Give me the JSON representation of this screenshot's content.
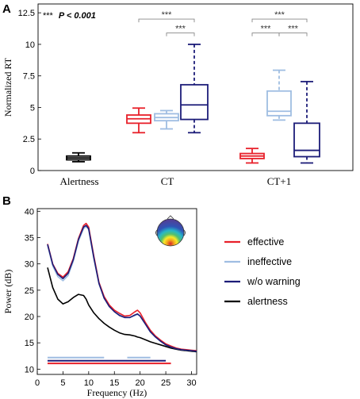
{
  "chart_data": [
    {
      "panel_label": "A",
      "type": "box",
      "ylabel": "Normalized RT",
      "ylim": [
        0,
        13.2
      ],
      "yticks": [
        "0",
        "2.5",
        "5",
        "7.5",
        "10",
        "12.5"
      ],
      "ytick_values": [
        0,
        2.5,
        5,
        7.5,
        10,
        12.5
      ],
      "group_labels": [
        "Alertness",
        "CT",
        "CT+1"
      ],
      "significance_legend": {
        "stars": "***",
        "text": "P < 0.001"
      },
      "boxes": [
        {
          "group": "Alertness",
          "color": "#000000",
          "whisker_low": 0.7,
          "q1": 0.85,
          "median": 1.0,
          "q3": 1.15,
          "whisker_high": 1.4
        },
        {
          "group": "CT",
          "color": "#e8202a",
          "whisker_low": 3.0,
          "q1": 3.75,
          "median": 4.1,
          "q3": 4.4,
          "whisker_high": 4.95
        },
        {
          "group": "CT",
          "color": "#9fbde2",
          "whisker_low": 3.3,
          "q1": 3.95,
          "median": 4.2,
          "q3": 4.5,
          "whisker_high": 4.75
        },
        {
          "group": "CT",
          "color": "#1c1c78",
          "whisker_low": 3.0,
          "q1": 4.05,
          "median": 5.2,
          "q3": 6.8,
          "whisker_high": 10.0
        },
        {
          "group": "CT+1",
          "color": "#e8202a",
          "whisker_low": 0.6,
          "q1": 0.95,
          "median": 1.15,
          "q3": 1.35,
          "whisker_high": 1.75
        },
        {
          "group": "CT+1",
          "color": "#9fbde2",
          "whisker_low": 4.0,
          "q1": 4.35,
          "median": 4.7,
          "q3": 6.3,
          "whisker_high": 7.95
        },
        {
          "group": "CT+1",
          "color": "#1c1c78",
          "whisker_low": 0.6,
          "q1": 1.1,
          "median": 1.6,
          "q3": 3.75,
          "whisker_high": 7.05
        }
      ],
      "significance_brackets": [
        {
          "from_box": 1,
          "to_box": 3,
          "y": 12.0,
          "label": "***"
        },
        {
          "from_box": 2,
          "to_box": 3,
          "y": 10.9,
          "label": "***"
        },
        {
          "from_box": 4,
          "to_box": 6,
          "y": 12.0,
          "label": "***"
        },
        {
          "from_box": 4,
          "to_box": 5,
          "y": 10.9,
          "label": "***"
        },
        {
          "from_box": 5,
          "to_box": 6,
          "y": 10.9,
          "label": "***"
        }
      ]
    },
    {
      "panel_label": "B",
      "type": "line",
      "xlabel": "Frequency (Hz)",
      "ylabel": "Power (dB)",
      "xlim": [
        0,
        31
      ],
      "ylim": [
        9,
        40.5
      ],
      "xticks": [
        "0",
        "5",
        "10",
        "15",
        "20",
        "25",
        "30"
      ],
      "xtick_values": [
        0,
        5,
        10,
        15,
        20,
        25,
        30
      ],
      "yticks": [
        "10",
        "15",
        "20",
        "25",
        "30",
        "35",
        "40"
      ],
      "ytick_values": [
        10,
        15,
        20,
        25,
        30,
        35,
        40
      ],
      "x": [
        2,
        3,
        4,
        5,
        6,
        7,
        8,
        9,
        9.5,
        10,
        11,
        12,
        13,
        14,
        15,
        16,
        17,
        18,
        19,
        19.5,
        20,
        21,
        22,
        23,
        24,
        25,
        26,
        27,
        28,
        29,
        30,
        31
      ],
      "series": [
        {
          "name": "effective",
          "color": "#e8202a",
          "values": [
            33.8,
            30.0,
            28.2,
            27.5,
            28.5,
            31.0,
            34.8,
            37.3,
            37.7,
            37.0,
            31.5,
            26.5,
            23.8,
            22.2,
            21.2,
            20.6,
            20.1,
            20.2,
            20.9,
            21.2,
            20.7,
            18.9,
            17.4,
            16.3,
            15.5,
            14.8,
            14.4,
            14.0,
            13.8,
            13.7,
            13.6,
            13.5
          ]
        },
        {
          "name": "ineffective",
          "color": "#9fbde2",
          "values": [
            33.5,
            29.6,
            27.6,
            26.8,
            27.8,
            30.5,
            34.3,
            36.7,
            37.1,
            36.5,
            31.0,
            26.2,
            23.5,
            22.0,
            21.0,
            20.3,
            19.9,
            19.8,
            20.2,
            20.4,
            20.1,
            18.6,
            17.1,
            16.1,
            15.3,
            14.6,
            14.2,
            13.9,
            13.7,
            13.6,
            13.5,
            13.4
          ]
        },
        {
          "name": "w/o warning",
          "color": "#1c1c78",
          "values": [
            33.7,
            29.9,
            28.0,
            27.2,
            28.2,
            30.8,
            34.6,
            37.0,
            37.3,
            36.7,
            31.2,
            26.3,
            23.5,
            21.9,
            20.9,
            20.2,
            19.8,
            19.8,
            20.3,
            20.5,
            20.1,
            18.6,
            17.1,
            16.1,
            15.3,
            14.6,
            14.2,
            13.9,
            13.7,
            13.6,
            13.5,
            13.4
          ]
        },
        {
          "name": "alertness",
          "color": "#000000",
          "values": [
            29.3,
            25.5,
            23.3,
            22.4,
            22.8,
            23.6,
            24.2,
            24.0,
            23.3,
            22.2,
            20.7,
            19.6,
            18.7,
            18.0,
            17.4,
            16.9,
            16.6,
            16.5,
            16.3,
            16.1,
            16.0,
            15.6,
            15.2,
            14.9,
            14.6,
            14.3,
            14.0,
            13.8,
            13.6,
            13.5,
            13.4,
            13.3
          ]
        }
      ],
      "significance_bars": [
        {
          "color": "#9fbde2",
          "y": 12.2,
          "x_start": 2,
          "x_end": 13
        },
        {
          "color": "#9fbde2",
          "y": 12.2,
          "x_start": 17.5,
          "x_end": 22
        },
        {
          "color": "#1c1c78",
          "y": 11.6,
          "x_start": 2,
          "x_end": 25
        },
        {
          "color": "#e8202a",
          "y": 11.1,
          "x_start": 2,
          "x_end": 26
        }
      ]
    }
  ]
}
